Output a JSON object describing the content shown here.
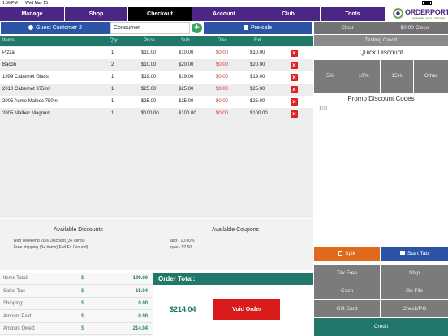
{
  "status_bar": {
    "time": "1:56 PM",
    "date": "Wed May 15"
  },
  "nav": {
    "tabs": [
      {
        "label": "Manage",
        "active": false
      },
      {
        "label": "Shop",
        "active": false
      },
      {
        "label": "Checkout",
        "active": true
      },
      {
        "label": "Account",
        "active": false
      },
      {
        "label": "Club",
        "active": false
      },
      {
        "label": "Tools",
        "active": false
      }
    ],
    "logo": {
      "name": "ORDERPORT",
      "tagline": "WINERY SOLUTIONS"
    }
  },
  "customer": {
    "guest_label": "Guest Customer 2",
    "type_value": "Consumer",
    "add_icon": "+",
    "presale_label": "Pre-sale"
  },
  "cart": {
    "headers": {
      "items": "Items",
      "qty": "Qty",
      "price": "Price",
      "sub": "Sub",
      "disc": "Disc",
      "ext": "Ext"
    },
    "rows": [
      {
        "item": "Pizza",
        "qty": "1",
        "price": "$10.00",
        "sub": "$10.00",
        "disc": "$0.00",
        "ext": "$10.00"
      },
      {
        "item": "Bacon",
        "qty": "2",
        "price": "$10.00",
        "sub": "$20.00",
        "disc": "$0.00",
        "ext": "$20.00"
      },
      {
        "item": "1999 Cabernet Glass",
        "qty": "1",
        "price": "$19.00",
        "sub": "$19.00",
        "disc": "$0.00",
        "ext": "$19.00"
      },
      {
        "item": "2010 Cabernet 375ml",
        "qty": "1",
        "price": "$25.00",
        "sub": "$25.00",
        "disc": "$0.00",
        "ext": "$25.00"
      },
      {
        "item": "2005 Acme Malbec 750ml",
        "qty": "1",
        "price": "$25.00",
        "sub": "$25.00",
        "disc": "$0.00",
        "ext": "$25.00"
      },
      {
        "item": "2005 Malbec Magnum",
        "qty": "1",
        "price": "$100.00",
        "sub": "$100.00",
        "disc": "$0.00",
        "ext": "$100.00"
      }
    ]
  },
  "discounts": {
    "title": "Available Discounts",
    "items": [
      "Red Weekend 20% Discount (3+ items)",
      "Free shipping (3+ items)(Fed Ex Ground)"
    ]
  },
  "coupons": {
    "title": "Available Coupons",
    "items": [
      "asd - 10.00%",
      "qwe - $2.50"
    ]
  },
  "totals": {
    "currency": "$",
    "rows": [
      {
        "label": "Items Total:",
        "value": "199.00"
      },
      {
        "label": "Sales Tax:",
        "value": "15.04"
      },
      {
        "label": "Shipping:",
        "value": "0.00"
      },
      {
        "label": "Amount Paid:",
        "value": "0.00"
      },
      {
        "label": "Amount Owed:",
        "value": "214.04"
      }
    ]
  },
  "order_total": {
    "header": "Order Total:",
    "value": "$214.04",
    "void_label": "Void Order"
  },
  "right_panel": {
    "clear_label": "Clear",
    "close_label": "$0.00 Close",
    "tasting_label": "Tasting Credit",
    "quick_discount_title": "Quick Discount",
    "quick_discounts": [
      "5%",
      "10%",
      "15%",
      "Other"
    ],
    "promo_codes_title": "Promo Discount Codes",
    "promo_codes": [
      "10d"
    ],
    "split_label": "Split",
    "start_tab_label": "Start Tab",
    "payment_buttons": [
      "Tax Free",
      "Ship",
      "Cash",
      "On File",
      "Gift Card",
      "Check/PO"
    ],
    "credit_label": "Credit"
  },
  "colors": {
    "nav_purple": "#4a2784",
    "nav_active": "#000000",
    "teal": "#21786a",
    "blue": "#2b54a6",
    "red": "#d91b1b",
    "orange": "#e06a1b",
    "gray_button": "#7b7b7b"
  }
}
